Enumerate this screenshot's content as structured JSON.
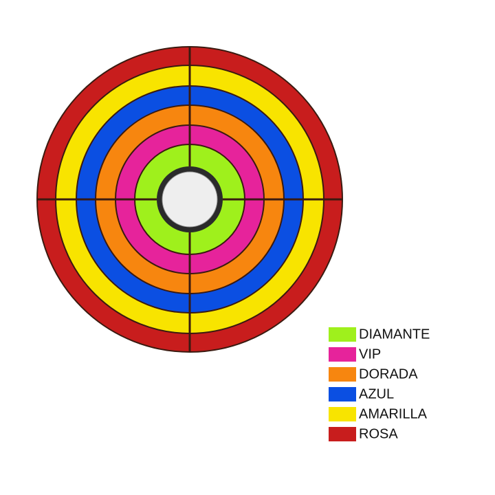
{
  "legend": [
    {
      "label": "DIAMANTE",
      "color": "#9ff01c"
    },
    {
      "label": "VIP",
      "color": "#e6239b"
    },
    {
      "label": "DORADA",
      "color": "#f7860f"
    },
    {
      "label": "AZUL",
      "color": "#0b4fe2"
    },
    {
      "label": "AMARILLA",
      "color": "#f8e400"
    },
    {
      "label": "ROSA",
      "color": "#c81d1d"
    }
  ]
}
